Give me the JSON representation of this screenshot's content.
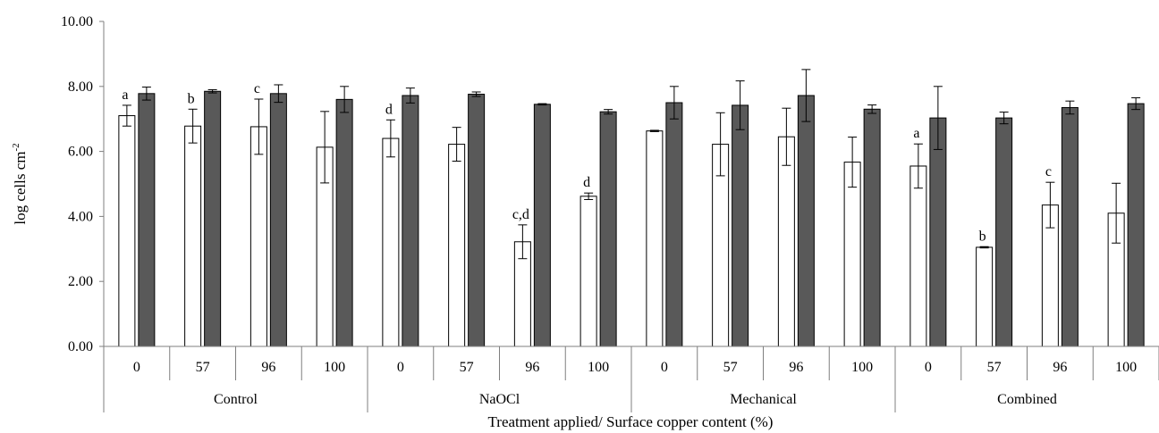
{
  "chart_data": {
    "type": "bar",
    "title": "",
    "ylabel": "log cells cm",
    "ylabel_superscript": "-2",
    "xlabel": "Treatment applied/ Surface copper content (%)",
    "ylim": [
      0,
      10
    ],
    "yticks": [
      "0.00",
      "2.00",
      "4.00",
      "6.00",
      "8.00",
      "10.00"
    ],
    "ytick_values": [
      0,
      2,
      4,
      6,
      8,
      10
    ],
    "grid": false,
    "legend": "none",
    "groups": [
      {
        "name": "Control",
        "categories": [
          "0",
          "57",
          "96",
          "100"
        ]
      },
      {
        "name": "NaOCl",
        "categories": [
          "0",
          "57",
          "96",
          "100"
        ]
      },
      {
        "name": "Mechanical",
        "categories": [
          "0",
          "57",
          "96",
          "100"
        ]
      },
      {
        "name": "Combined",
        "categories": [
          "0",
          "57",
          "96",
          "100"
        ]
      }
    ],
    "series": [
      {
        "color": "#ffffff",
        "values": [
          7.1,
          6.78,
          6.76,
          6.13,
          6.4,
          6.22,
          3.22,
          4.62,
          6.63,
          6.22,
          6.45,
          5.67,
          5.55,
          3.05,
          4.35,
          4.1
        ],
        "errors": [
          0.32,
          0.52,
          0.85,
          1.1,
          0.57,
          0.52,
          0.52,
          0.1,
          0.02,
          0.97,
          0.88,
          0.77,
          0.68,
          0.02,
          0.7,
          0.92
        ],
        "labels": [
          "a",
          "b",
          "c",
          "",
          "d",
          "",
          "c,d",
          "d",
          "",
          "",
          "",
          "",
          "a",
          "b",
          "c",
          ""
        ]
      },
      {
        "color": "#595959",
        "values": [
          7.78,
          7.85,
          7.78,
          7.6,
          7.72,
          7.76,
          7.45,
          7.22,
          7.5,
          7.42,
          7.72,
          7.3,
          7.03,
          7.03,
          7.35,
          7.47
        ],
        "errors": [
          0.2,
          0.05,
          0.27,
          0.4,
          0.23,
          0.07,
          0.02,
          0.07,
          0.5,
          0.75,
          0.8,
          0.13,
          0.97,
          0.18,
          0.2,
          0.18
        ],
        "labels": [
          "",
          "",
          "",
          "",
          "",
          "",
          "",
          "",
          "",
          "",
          "",
          "",
          "",
          "",
          "",
          ""
        ]
      }
    ]
  }
}
